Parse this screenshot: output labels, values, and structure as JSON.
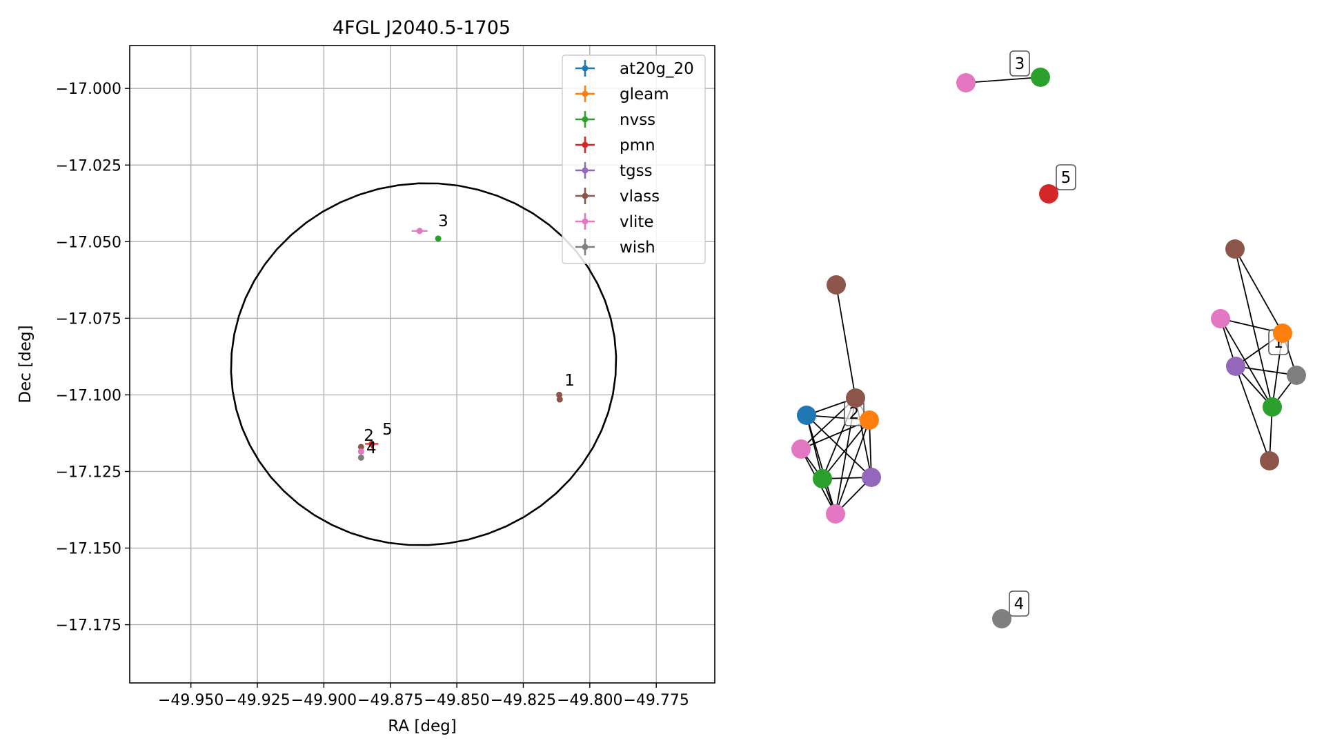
{
  "chart_data": [
    {
      "type": "scatter",
      "title": "4FGL J2040.5-1705",
      "xlabel": "RA [deg]",
      "ylabel": "Dec [deg]",
      "xlim": [
        -49.973,
        -49.753
      ],
      "ylim": [
        -17.194,
        -16.986
      ],
      "grid": true,
      "legend_position": "top-right",
      "x_ticks": [
        -49.95,
        -49.925,
        -49.9,
        -49.875,
        -49.85,
        -49.825,
        -49.8,
        -49.775
      ],
      "x_tick_labels": [
        "−49.950",
        "−49.925",
        "−49.900",
        "−49.875",
        "−49.850",
        "−49.825",
        "−49.800",
        "−49.775"
      ],
      "y_ticks": [
        -17.0,
        -17.025,
        -17.05,
        -17.075,
        -17.1,
        -17.125,
        -17.15,
        -17.175
      ],
      "y_tick_labels": [
        "−17.000",
        "−17.025",
        "−17.050",
        "−17.075",
        "−17.100",
        "−17.125",
        "−17.150",
        "−17.175"
      ],
      "ellipse": {
        "type": "error-ellipse",
        "ra_range": [
          -49.935,
          -49.79
        ],
        "dec_range": [
          -17.149,
          -17.031
        ]
      },
      "series": [
        {
          "name": "at20g_20",
          "color": "#1f77b4",
          "points": []
        },
        {
          "name": "gleam",
          "color": "#ff7f0e",
          "points": []
        },
        {
          "name": "nvss",
          "color": "#2ca02c",
          "points": [
            {
              "x": -49.857,
              "y": -17.049,
              "xerr": 0.0,
              "yerr": 0.0
            }
          ]
        },
        {
          "name": "pmn",
          "color": "#d62728",
          "points": [
            {
              "x": -49.882,
              "y": -17.116,
              "xerr": 0.0025,
              "yerr": 0.0015
            }
          ]
        },
        {
          "name": "tgss",
          "color": "#9467bd",
          "points": []
        },
        {
          "name": "vlass",
          "color": "#8c564b",
          "points": [
            {
              "x": -49.886,
              "y": -17.117,
              "xerr": 0.0,
              "yerr": 0.0
            },
            {
              "x": -49.8115,
              "y": -17.1,
              "xerr": 0.0,
              "yerr": 0.0
            },
            {
              "x": -49.8113,
              "y": -17.1015,
              "xerr": 0.0,
              "yerr": 0.0
            }
          ]
        },
        {
          "name": "vlite",
          "color": "#e377c2",
          "points": [
            {
              "x": -49.864,
              "y": -17.0465,
              "xerr": 0.003,
              "yerr": 0.001
            },
            {
              "x": -49.886,
              "y": -17.1185,
              "xerr": 0.0,
              "yerr": 0.0
            }
          ]
        },
        {
          "name": "wish",
          "color": "#7f7f7f",
          "points": [
            {
              "x": -49.886,
              "y": -17.1205,
              "xerr": 0.0,
              "yerr": 0.0
            }
          ]
        }
      ],
      "annotations": [
        {
          "text": "1",
          "x": -49.8095,
          "y": -17.097
        },
        {
          "text": "2",
          "x": -49.885,
          "y": -17.115
        },
        {
          "text": "5",
          "x": -49.878,
          "y": -17.113
        },
        {
          "text": "4",
          "x": -49.884,
          "y": -17.119
        },
        {
          "text": "3",
          "x": -49.857,
          "y": -17.045
        }
      ]
    },
    {
      "type": "network",
      "nodes": [
        {
          "id": "a_vlass",
          "source": "vlass",
          "color": "#8c564b"
        },
        {
          "id": "a_vlite",
          "source": "vlite",
          "color": "#e377c2"
        },
        {
          "id": "a_gleam",
          "source": "gleam",
          "color": "#ff7f0e"
        },
        {
          "id": "a_tgss",
          "source": "tgss",
          "color": "#9467bd"
        },
        {
          "id": "a_wish",
          "source": "wish",
          "color": "#7f7f7f"
        },
        {
          "id": "a_nvss",
          "source": "nvss",
          "color": "#2ca02c"
        },
        {
          "id": "a_vlass2",
          "source": "vlass",
          "color": "#8c564b"
        },
        {
          "id": "b_vlass_top",
          "source": "vlass",
          "color": "#8c564b"
        },
        {
          "id": "b_vlass",
          "source": "vlass",
          "color": "#8c564b"
        },
        {
          "id": "b_at20g",
          "source": "at20g_20",
          "color": "#1f77b4"
        },
        {
          "id": "b_gleam",
          "source": "gleam",
          "color": "#ff7f0e"
        },
        {
          "id": "b_vlite",
          "source": "vlite",
          "color": "#e377c2"
        },
        {
          "id": "b_nvss",
          "source": "nvss",
          "color": "#2ca02c"
        },
        {
          "id": "b_tgss",
          "source": "tgss",
          "color": "#9467bd"
        },
        {
          "id": "b_vlite2",
          "source": "vlite",
          "color": "#e377c2"
        },
        {
          "id": "c_vlite",
          "source": "vlite",
          "color": "#e377c2"
        },
        {
          "id": "c_nvss",
          "source": "nvss",
          "color": "#2ca02c"
        },
        {
          "id": "d_wish",
          "source": "wish",
          "color": "#7f7f7f"
        },
        {
          "id": "e_pmn",
          "source": "pmn",
          "color": "#d62728"
        }
      ],
      "edges": [
        [
          "a_vlass",
          "a_gleam"
        ],
        [
          "a_vlass",
          "a_nvss"
        ],
        [
          "a_vlite",
          "a_gleam"
        ],
        [
          "a_vlite",
          "a_tgss"
        ],
        [
          "a_vlite",
          "a_nvss"
        ],
        [
          "a_gleam",
          "a_tgss"
        ],
        [
          "a_gleam",
          "a_nvss"
        ],
        [
          "a_tgss",
          "a_wish"
        ],
        [
          "a_tgss",
          "a_nvss"
        ],
        [
          "a_wish",
          "a_nvss"
        ],
        [
          "a_gleam",
          "a_wish"
        ],
        [
          "a_nvss",
          "a_vlass2"
        ],
        [
          "a_tgss",
          "a_vlass2"
        ],
        [
          "b_vlass_top",
          "b_vlass"
        ],
        [
          "b_at20g",
          "b_vlass"
        ],
        [
          "b_at20g",
          "b_gleam"
        ],
        [
          "b_at20g",
          "b_tgss"
        ],
        [
          "b_at20g",
          "b_nvss"
        ],
        [
          "b_at20g",
          "b_vlite2"
        ],
        [
          "b_vlite",
          "b_vlass"
        ],
        [
          "b_vlite",
          "b_gleam"
        ],
        [
          "b_vlite",
          "b_nvss"
        ],
        [
          "b_vlite",
          "b_vlite2"
        ],
        [
          "b_vlass",
          "b_gleam"
        ],
        [
          "b_vlass",
          "b_nvss"
        ],
        [
          "b_vlass",
          "b_vlite2"
        ],
        [
          "b_gleam",
          "b_tgss"
        ],
        [
          "b_gleam",
          "b_nvss"
        ],
        [
          "b_gleam",
          "b_vlite2"
        ],
        [
          "b_nvss",
          "b_tgss"
        ],
        [
          "b_nvss",
          "b_vlite2"
        ],
        [
          "b_tgss",
          "b_vlite2"
        ],
        [
          "b_vlass",
          "b_tgss"
        ],
        [
          "c_vlite",
          "c_nvss"
        ]
      ],
      "labels": [
        {
          "text": "1",
          "near": "a_gleam"
        },
        {
          "text": "2",
          "near": "b_vlass"
        },
        {
          "text": "3",
          "near": "c_nvss"
        },
        {
          "text": "4",
          "near": "d_wish"
        },
        {
          "text": "5",
          "near": "e_pmn"
        }
      ]
    }
  ]
}
